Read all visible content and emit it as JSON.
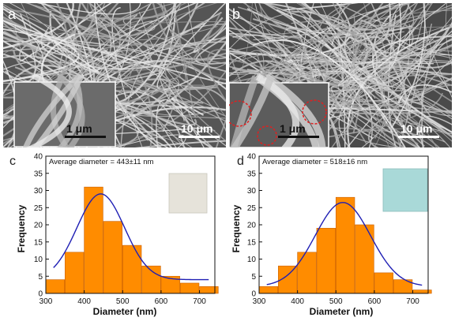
{
  "panels": {
    "a": {
      "letter": "a",
      "scale_main": "10 μm",
      "scale_inset": "1 μm"
    },
    "b": {
      "letter": "b",
      "scale_main": "10 μm",
      "scale_inset": "1 μm"
    }
  },
  "chart_data": [
    {
      "panel": "c",
      "type": "bar",
      "annotation": "Average diameter = 443±11 nm",
      "xlabel": "Diameter (nm)",
      "ylabel": "Frequency",
      "xlim": [
        300,
        740
      ],
      "ylim": [
        0,
        40
      ],
      "xticks": [
        300,
        400,
        500,
        600,
        700
      ],
      "yticks": [
        0,
        5,
        10,
        15,
        20,
        25,
        30,
        35,
        40
      ],
      "bin_width": 50,
      "bins": [
        325,
        375,
        425,
        475,
        525,
        575,
        625,
        675,
        725
      ],
      "values": [
        4,
        12,
        31,
        21,
        14,
        8,
        5,
        3,
        2
      ],
      "fit": {
        "type": "gaussian",
        "mean": 443,
        "sigma": 62,
        "amplitude": 25,
        "offset": 4
      },
      "bar_color": "#ff8c00",
      "fit_color": "#1f1fb4",
      "swatch_color": "#e6e3da"
    },
    {
      "panel": "d",
      "type": "bar",
      "annotation": "Average diameter = 518±16 nm",
      "xlabel": "Diameter (nm)",
      "ylabel": "Frequency",
      "xlim": [
        300,
        740
      ],
      "ylim": [
        0,
        40
      ],
      "xticks": [
        300,
        400,
        500,
        600,
        700
      ],
      "yticks": [
        0,
        5,
        10,
        15,
        20,
        25,
        30,
        35,
        40
      ],
      "bin_width": 50,
      "bins": [
        325,
        375,
        425,
        475,
        525,
        575,
        625,
        675,
        725
      ],
      "values": [
        2,
        8,
        12,
        19,
        28,
        20,
        6,
        4,
        1
      ],
      "fit": {
        "type": "gaussian",
        "mean": 518,
        "sigma": 72,
        "amplitude": 24.5,
        "offset": 2
      },
      "bar_color": "#ff8c00",
      "fit_color": "#1f1fb4",
      "swatch_color": "#a9d9d8"
    }
  ]
}
